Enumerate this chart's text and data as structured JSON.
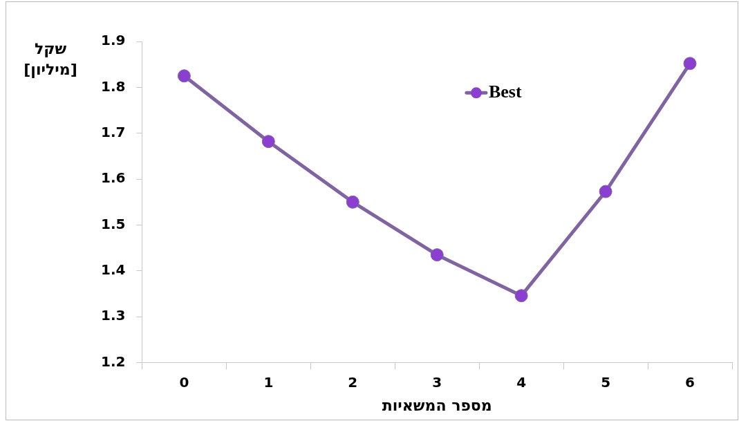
{
  "chart_data": {
    "type": "line",
    "xlabel": "מספר המשאיות",
    "ylabel": "שקל [מיליון]",
    "categories": [
      "0",
      "1",
      "2",
      "3",
      "4",
      "5",
      "6"
    ],
    "series": [
      {
        "name": "Best",
        "color": "#8064a2",
        "values": [
          1.825,
          1.682,
          1.55,
          1.435,
          1.346,
          1.573,
          1.852
        ]
      }
    ],
    "ylim": [
      1.2,
      1.9
    ],
    "yticks": [
      1.2,
      1.3,
      1.4,
      1.5,
      1.6,
      1.7,
      1.8,
      1.9
    ],
    "grid": false,
    "legend": "top",
    "marker": "circle",
    "line_style": "solid"
  }
}
